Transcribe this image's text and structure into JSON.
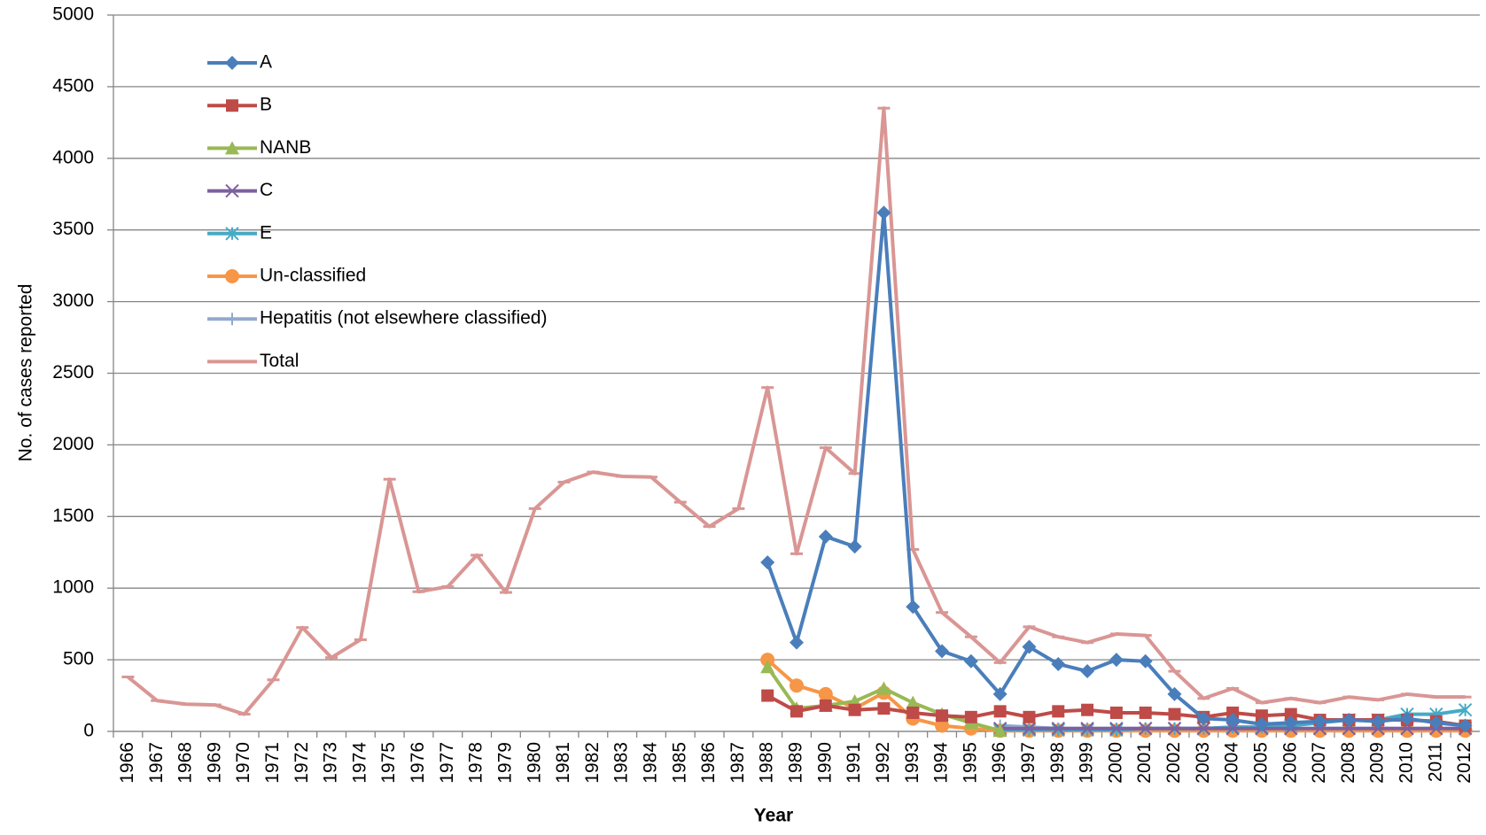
{
  "chart_data": {
    "type": "line",
    "xlabel": "Year",
    "ylabel": "No. of cases reported",
    "categories": [
      "1966",
      "1967",
      "1968",
      "1969",
      "1970",
      "1971",
      "1972",
      "1973",
      "1974",
      "1975",
      "1976",
      "1977",
      "1978",
      "1979",
      "1980",
      "1981",
      "1982",
      "1983",
      "1984",
      "1985",
      "1986",
      "1987",
      "1988",
      "1989",
      "1990",
      "1991",
      "1992",
      "1993",
      "1994",
      "1995",
      "1996",
      "1997",
      "1998",
      "1999",
      "2000",
      "2001",
      "2002",
      "2003",
      "2004",
      "2005",
      "2006",
      "2007",
      "2008",
      "2009",
      "2010",
      "2011",
      "2012"
    ],
    "ylim": [
      0,
      5000
    ],
    "yticks": [
      0,
      500,
      1000,
      1500,
      2000,
      2500,
      3000,
      3500,
      4000,
      4500,
      5000
    ],
    "grid": true,
    "legend": "upper left",
    "series": [
      {
        "name": "A",
        "color": "#4a7ebb",
        "marker": "diamond",
        "values": [
          null,
          null,
          null,
          null,
          null,
          null,
          null,
          null,
          null,
          null,
          null,
          null,
          null,
          null,
          null,
          null,
          null,
          null,
          null,
          null,
          null,
          null,
          1180,
          620,
          1360,
          1290,
          3620,
          870,
          560,
          490,
          260,
          590,
          470,
          420,
          500,
          490,
          260,
          90,
          80,
          50,
          60,
          70,
          80,
          70,
          90,
          60,
          40
        ]
      },
      {
        "name": "B",
        "color": "#be4b48",
        "marker": "square",
        "values": [
          null,
          null,
          null,
          null,
          null,
          null,
          null,
          null,
          null,
          null,
          null,
          null,
          null,
          null,
          null,
          null,
          null,
          null,
          null,
          null,
          null,
          null,
          250,
          140,
          180,
          150,
          160,
          130,
          110,
          100,
          140,
          100,
          140,
          150,
          130,
          130,
          120,
          100,
          130,
          110,
          120,
          80,
          80,
          80,
          80,
          70,
          40
        ]
      },
      {
        "name": "NANB",
        "color": "#98b954",
        "marker": "triangle",
        "values": [
          null,
          null,
          null,
          null,
          null,
          null,
          null,
          null,
          null,
          null,
          null,
          null,
          null,
          null,
          null,
          null,
          null,
          null,
          null,
          null,
          null,
          null,
          450,
          160,
          180,
          210,
          300,
          200,
          120,
          60,
          5,
          null,
          null,
          null,
          null,
          null,
          null,
          null,
          null,
          null,
          null,
          null,
          null,
          null,
          null,
          null,
          null
        ]
      },
      {
        "name": "C",
        "color": "#7d60a0",
        "marker": "x",
        "values": [
          null,
          null,
          null,
          null,
          null,
          null,
          null,
          null,
          null,
          null,
          null,
          null,
          null,
          null,
          null,
          null,
          null,
          null,
          null,
          null,
          null,
          null,
          null,
          null,
          null,
          null,
          null,
          null,
          null,
          null,
          20,
          20,
          20,
          20,
          20,
          20,
          20,
          20,
          20,
          20,
          20,
          20,
          20,
          20,
          20,
          20,
          20
        ]
      },
      {
        "name": "E",
        "color": "#46aac5",
        "marker": "star",
        "values": [
          null,
          null,
          null,
          null,
          null,
          null,
          null,
          null,
          null,
          null,
          null,
          null,
          null,
          null,
          null,
          null,
          null,
          null,
          null,
          null,
          null,
          null,
          null,
          null,
          null,
          null,
          null,
          null,
          null,
          null,
          10,
          10,
          10,
          10,
          10,
          20,
          20,
          20,
          30,
          30,
          40,
          60,
          80,
          80,
          120,
          120,
          150
        ]
      },
      {
        "name": "Un-classified",
        "color": "#f79646",
        "marker": "circle",
        "values": [
          null,
          null,
          null,
          null,
          null,
          null,
          null,
          null,
          null,
          null,
          null,
          null,
          null,
          null,
          null,
          null,
          null,
          null,
          null,
          null,
          null,
          null,
          500,
          320,
          260,
          160,
          270,
          90,
          40,
          20,
          5,
          5,
          5,
          5,
          5,
          5,
          5,
          5,
          5,
          5,
          5,
          5,
          5,
          5,
          5,
          5,
          5
        ]
      },
      {
        "name": "Hepatitis (not elsewhere classified)",
        "color": "#93a9cf",
        "marker": "plus",
        "values": [
          null,
          null,
          null,
          null,
          null,
          null,
          null,
          null,
          null,
          null,
          null,
          null,
          null,
          null,
          null,
          null,
          null,
          null,
          null,
          null,
          null,
          null,
          null,
          null,
          null,
          null,
          null,
          null,
          null,
          null,
          40,
          30,
          20,
          20,
          20,
          20,
          20,
          20,
          20,
          20,
          20,
          20,
          20,
          20,
          20,
          20,
          20
        ]
      },
      {
        "name": "Total",
        "color": "#d99694",
        "marker": "dash",
        "values": [
          380,
          215,
          190,
          185,
          120,
          360,
          725,
          515,
          640,
          1760,
          975,
          1010,
          1230,
          970,
          1555,
          1740,
          1810,
          1780,
          1775,
          1600,
          1430,
          1555,
          2400,
          1240,
          1980,
          1800,
          4350,
          1270,
          830,
          660,
          480,
          730,
          660,
          620,
          680,
          670,
          420,
          230,
          300,
          200,
          230,
          200,
          240,
          220,
          260,
          240,
          240
        ]
      }
    ]
  }
}
